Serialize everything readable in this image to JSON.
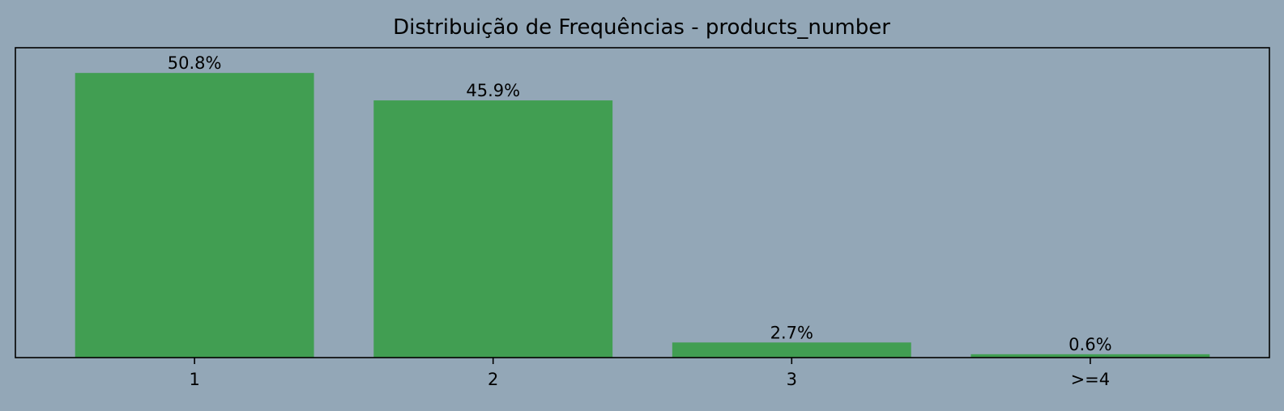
{
  "chart_data": {
    "type": "bar",
    "title": "Distribuição de Frequências - products_number",
    "xlabel": "",
    "ylabel": "",
    "categories": [
      "1",
      "2",
      "3",
      ">=4"
    ],
    "values": [
      50.8,
      45.9,
      2.7,
      0.6
    ],
    "data_labels": [
      "50.8%",
      "45.9%",
      "2.7%",
      "0.6%"
    ],
    "ylim": [
      0,
      55.3
    ],
    "grid": false,
    "y_ticks_shown": false,
    "bar_color": "#419e52",
    "background_color": "#93a7b7",
    "frame_color": "#000000"
  }
}
